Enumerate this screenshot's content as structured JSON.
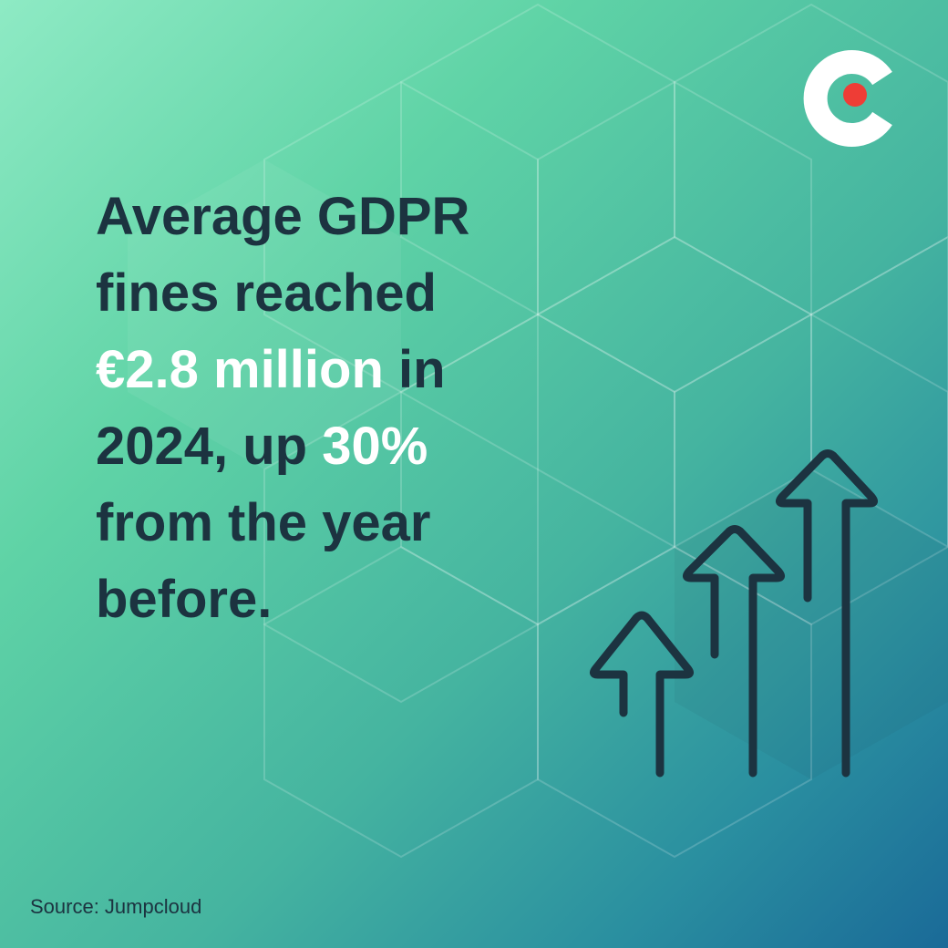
{
  "headline": {
    "lines": [
      [
        {
          "text": "Average GDPR",
          "highlight": false
        }
      ],
      [
        {
          "text": "fines reached",
          "highlight": false
        }
      ],
      [
        {
          "text": "€2.8 million",
          "highlight": true
        },
        {
          "text": " in",
          "highlight": false
        }
      ],
      [
        {
          "text": "2024, up ",
          "highlight": false
        },
        {
          "text": "30%",
          "highlight": true
        }
      ],
      [
        {
          "text": "from the year",
          "highlight": false
        }
      ],
      [
        {
          "text": "before.",
          "highlight": false
        }
      ]
    ]
  },
  "source": "Source: Jumpcloud"
}
